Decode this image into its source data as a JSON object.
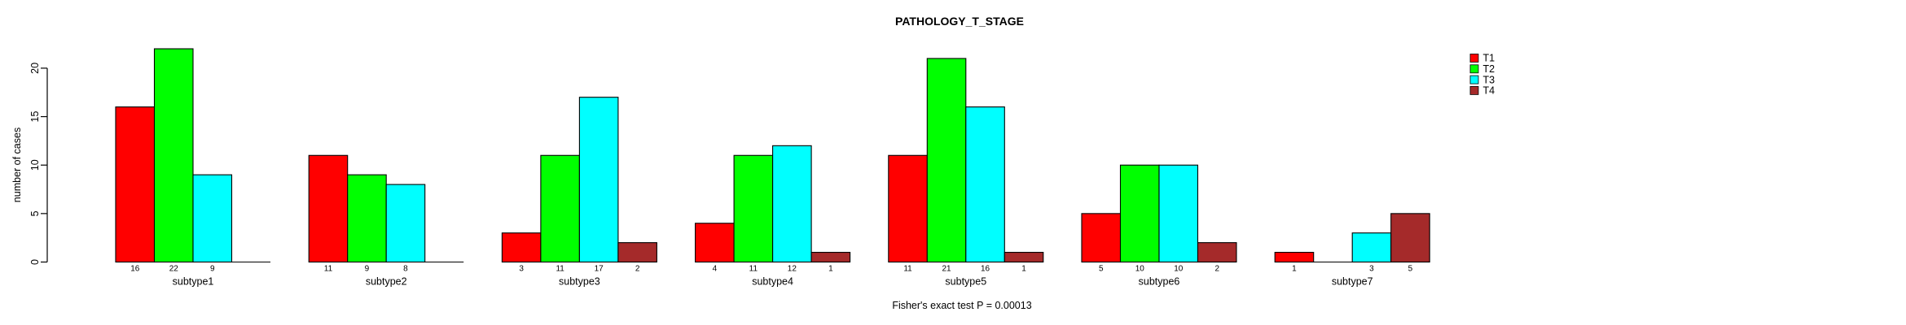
{
  "header": {
    "title": "PATHOLOGY_T_STAGE"
  },
  "footer": {
    "note": "Fisher's exact test P = 0.00013"
  },
  "chart_data": {
    "type": "bar",
    "grouped": true,
    "title": "PATHOLOGY_T_STAGE",
    "xlabel": "",
    "ylabel": "number of cases",
    "categories": [
      "subtype1",
      "subtype2",
      "subtype3",
      "subtype4",
      "subtype5",
      "subtype6",
      "subtype7"
    ],
    "series": [
      {
        "name": "T1",
        "color": "#FF0000",
        "values": [
          16,
          11,
          3,
          4,
          11,
          5,
          1
        ]
      },
      {
        "name": "T2",
        "color": "#00FF00",
        "values": [
          22,
          9,
          11,
          11,
          21,
          10,
          0
        ]
      },
      {
        "name": "T3",
        "color": "#00FFFF",
        "values": [
          9,
          8,
          17,
          12,
          16,
          10,
          3
        ]
      },
      {
        "name": "T4",
        "color": "#A52A2A",
        "values": [
          0,
          0,
          2,
          1,
          1,
          2,
          5
        ]
      }
    ],
    "yticks": [
      0,
      5,
      10,
      15,
      20
    ],
    "ylim": [
      0,
      22
    ],
    "grid": false,
    "legend_position": "right",
    "bar_value_labels": "value printed under each nonzero bar; zero bars drawn as flat baseline segment with no label",
    "annotation": "Fisher's exact test P = 0.00013"
  }
}
